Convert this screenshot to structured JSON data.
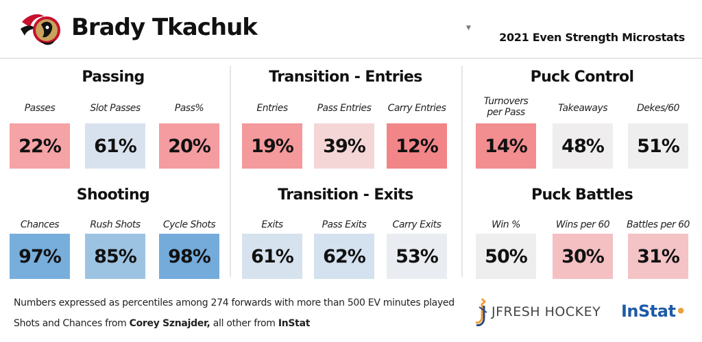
{
  "header": {
    "player_name": "Brady Tkachuk",
    "report_title": "2021 Even Strength Microstats"
  },
  "sections": {
    "passing": {
      "title": "Passing",
      "stats": [
        {
          "label": "Passes",
          "value": "22%",
          "color": "#f5a3a6"
        },
        {
          "label": "Slot Passes",
          "value": "61%",
          "color": "#d8e2ee"
        },
        {
          "label": "Pass%",
          "value": "20%",
          "color": "#f49ca0"
        }
      ]
    },
    "entries": {
      "title": "Transition - Entries",
      "stats": [
        {
          "label": "Entries",
          "value": "19%",
          "color": "#f4999c"
        },
        {
          "label": "Pass Entries",
          "value": "39%",
          "color": "#f5d6d7"
        },
        {
          "label": "Carry Entries",
          "value": "12%",
          "color": "#f28588"
        }
      ]
    },
    "puck_control": {
      "title": "Puck Control",
      "stats": [
        {
          "label": "Turnovers\nper Pass",
          "value": "14%",
          "color": "#f28d90"
        },
        {
          "label": "Takeaways",
          "value": "48%",
          "color": "#efeded"
        },
        {
          "label": "Dekes/60",
          "value": "51%",
          "color": "#eeeeee"
        }
      ]
    },
    "shooting": {
      "title": "Shooting",
      "stats": [
        {
          "label": "Chances",
          "value": "97%",
          "color": "#78aedb"
        },
        {
          "label": "Rush Shots",
          "value": "85%",
          "color": "#9dc3e3"
        },
        {
          "label": "Cycle Shots",
          "value": "98%",
          "color": "#74abdb"
        }
      ]
    },
    "exits": {
      "title": "Transition - Exits",
      "stats": [
        {
          "label": "Exits",
          "value": "61%",
          "color": "#d6e2ee"
        },
        {
          "label": "Pass Exits",
          "value": "62%",
          "color": "#d4e1ee"
        },
        {
          "label": "Carry Exits",
          "value": "53%",
          "color": "#e9ecf0"
        }
      ]
    },
    "puck_battles": {
      "title": "Puck Battles",
      "stats": [
        {
          "label": "Win %",
          "value": "50%",
          "color": "#eeeeee"
        },
        {
          "label": "Wins per 60",
          "value": "30%",
          "color": "#f4c0c2"
        },
        {
          "label": "Battles per 60",
          "value": "31%",
          "color": "#f4c3c5"
        }
      ]
    }
  },
  "footer": {
    "note1": "Numbers expressed as percentiles among 274 forwards with more than 500 EV minutes played",
    "note2_prefix": "Shots and Chances from ",
    "note2_source1": "Corey Sznajder,",
    "note2_mid": " all other from ",
    "note2_source2": "InStat",
    "brand1": "JFRESH HOCKEY",
    "brand2": "InStat"
  },
  "icons": {
    "team_logo": "senators-logo-icon",
    "dropdown": "caret-down-icon",
    "brand_mark": "jfresh-hockey-logo-icon",
    "instat_mark": "instat-logo-icon"
  }
}
